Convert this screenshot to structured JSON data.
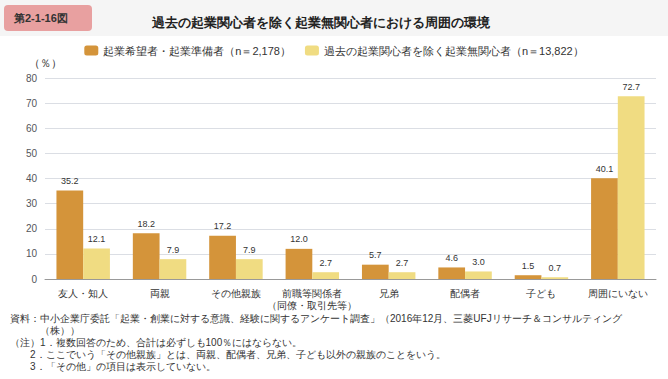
{
  "chart_data": {
    "type": "bar",
    "title": "過去の起業関心者を除く起業無関心者における周囲の環境",
    "fig_label": "第2-1-16図",
    "categories": [
      "友人・知人",
      "両親",
      "その他親族",
      "前職等関係者\n（同僚・取引先等）",
      "兄弟",
      "配偶者",
      "子ども",
      "周囲にいない"
    ],
    "series": [
      {
        "name": "起業希望者・起業準備者（n＝2,178）",
        "color": "#D4943A",
        "values": [
          35.2,
          18.2,
          17.2,
          12.0,
          5.7,
          4.6,
          1.5,
          40.1
        ],
        "value_labels": [
          "35.2",
          "18.2",
          "17.2",
          "12.0",
          "5.7",
          "4.6",
          "1.5",
          "40.1"
        ]
      },
      {
        "name": "過去の起業関心者を除く起業無関心者（n＝13,822）",
        "color": "#F0DC82",
        "values": [
          12.1,
          7.9,
          7.9,
          2.7,
          2.7,
          3.0,
          0.7,
          72.7
        ],
        "value_labels": [
          "12.1",
          "7.9",
          "7.9",
          "2.7",
          "2.7",
          "3.0",
          "0.7",
          "72.7"
        ]
      }
    ],
    "ylabel": "（％）",
    "ylim": [
      0,
      80
    ],
    "yticks": [
      0,
      10,
      20,
      30,
      40,
      50,
      60,
      70,
      80
    ],
    "grid": true,
    "legend": "top",
    "data_labels": true,
    "notes": [
      "資料：中小企業庁委託「起業・創業に対する意識、経験に関するアンケート調査」（2016年12月、三菱UFJリサーチ＆コンサルティング\n　　　（株））",
      "（注）1．複数回答のため、合計は必ずしも100％にはならない。",
      "　　2．ここでいう「その他親族」とは、両親、配偶者、兄弟、子ども以外の親族のことをいう。",
      "　　3．「その他」の項目は表示していない。"
    ]
  }
}
